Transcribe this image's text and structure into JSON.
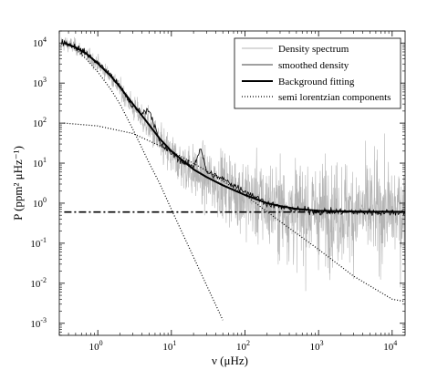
{
  "chart_data": {
    "type": "line",
    "xscale": "log",
    "yscale": "log",
    "xlim": [
      0.3,
      15000
    ],
    "ylim": [
      0.0005,
      20000
    ],
    "xlabel": "ν (μHz)",
    "ylabel": "P (ppm² μHz⁻¹)",
    "x_ticks": [
      {
        "value": 1,
        "label": "10",
        "exp": "0"
      },
      {
        "value": 10,
        "label": "10",
        "exp": "1"
      },
      {
        "value": 100,
        "label": "10",
        "exp": "2"
      },
      {
        "value": 1000,
        "label": "10",
        "exp": "3"
      },
      {
        "value": 10000,
        "label": "10",
        "exp": "4"
      }
    ],
    "y_ticks": [
      {
        "value": 0.001,
        "label": "10",
        "exp": "-3"
      },
      {
        "value": 0.01,
        "label": "10",
        "exp": "-2"
      },
      {
        "value": 0.1,
        "label": "10",
        "exp": "-1"
      },
      {
        "value": 1,
        "label": "10",
        "exp": "0"
      },
      {
        "value": 10,
        "label": "10",
        "exp": "1"
      },
      {
        "value": 100,
        "label": "10",
        "exp": "2"
      },
      {
        "value": 1000,
        "label": "10",
        "exp": "3"
      },
      {
        "value": 10000,
        "label": "10",
        "exp": "4"
      }
    ],
    "legend_position": "top-right",
    "series": [
      {
        "name": "Density spectrum",
        "style": "thin-gray-noisy",
        "color": "#b4b4b4",
        "x": [
          0.35,
          0.5,
          0.7,
          1,
          1.5,
          2,
          3,
          5,
          7,
          10,
          20,
          30,
          50,
          100,
          200,
          500,
          1000,
          3000,
          10000,
          15000
        ],
        "y": [
          10000,
          8000,
          5000,
          3000,
          1400,
          700,
          250,
          80,
          30,
          15,
          6,
          4,
          3,
          1.5,
          0.9,
          0.6,
          0.6,
          0.6,
          0.6,
          0.6
        ]
      },
      {
        "name": "smoothed density",
        "style": "thin-black",
        "color": "#000000",
        "x": [
          0.35,
          0.5,
          0.7,
          1,
          1.5,
          2,
          3,
          4,
          5,
          6,
          7,
          10,
          15,
          20,
          25,
          30,
          50,
          100,
          200,
          300,
          500,
          1000,
          3000,
          10000,
          15000
        ],
        "y": [
          10500,
          8000,
          5500,
          3200,
          1600,
          800,
          250,
          180,
          220,
          80,
          30,
          18,
          10,
          8,
          25,
          6,
          4,
          2.0,
          1.0,
          0.8,
          0.7,
          0.62,
          0.6,
          0.6,
          0.6
        ]
      },
      {
        "name": "Background fitting",
        "style": "thick-black",
        "color": "#000000",
        "x": [
          0.35,
          0.5,
          0.7,
          1,
          1.5,
          2,
          3,
          5,
          7,
          10,
          20,
          30,
          50,
          100,
          200,
          300,
          500,
          1000,
          3000,
          10000,
          15000
        ],
        "y": [
          10000,
          7800,
          5400,
          3100,
          1500,
          800,
          300,
          90,
          40,
          20,
          7,
          4.5,
          2.8,
          1.6,
          1.0,
          0.85,
          0.72,
          0.65,
          0.62,
          0.61,
          0.61
        ]
      },
      {
        "name": "semi lorentzian components",
        "style": "dotted",
        "color": "#000000",
        "components": [
          {
            "x": [
              0.35,
              0.5,
              0.7,
              1,
              1.5,
              2,
              3,
              5,
              7,
              10,
              20,
              30,
              50
            ],
            "y": [
              10000,
              7000,
              4000,
              1900,
              700,
              300,
              70,
              10,
              3,
              0.7,
              0.045,
              0.009,
              0.0012
            ]
          },
          {
            "x": [
              0.35,
              1,
              3,
              10,
              30,
              100,
              300,
              1000,
              3000,
              10000,
              15000
            ],
            "y": [
              100,
              85,
              55,
              20,
              6.5,
              1.6,
              0.35,
              0.07,
              0.015,
              0.004,
              0.0035
            ]
          },
          {
            "x": [
              0.35,
              15000
            ],
            "y": [
              0.6,
              0.6
            ]
          }
        ]
      }
    ]
  },
  "legend": {
    "items": [
      {
        "label": "Density spectrum",
        "style": "thin-gray"
      },
      {
        "label": "smoothed density",
        "style": "thin-black"
      },
      {
        "label": "Background fitting",
        "style": "thick-black"
      },
      {
        "label": "semi lorentzian components",
        "style": "dotted"
      }
    ]
  },
  "axes": {
    "xlabel": "ν (μHz)",
    "ylabel": "P (ppm² μHz⁻¹)"
  }
}
